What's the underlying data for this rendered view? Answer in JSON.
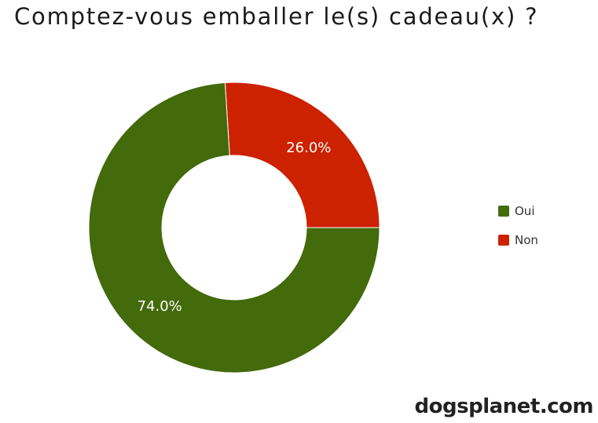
{
  "chart_data": {
    "type": "pie",
    "donut": true,
    "title": "Comptez-vous emballer le(s) cadeau(x) ?",
    "slices": [
      {
        "label": "Oui",
        "value": 74.0,
        "display": "74.0%",
        "color": "#436a0b"
      },
      {
        "label": "Non",
        "value": 26.0,
        "display": "26.0%",
        "color": "#cc2200"
      }
    ],
    "legend_position": "right"
  },
  "branding": {
    "text": "dogsplanet.com"
  }
}
